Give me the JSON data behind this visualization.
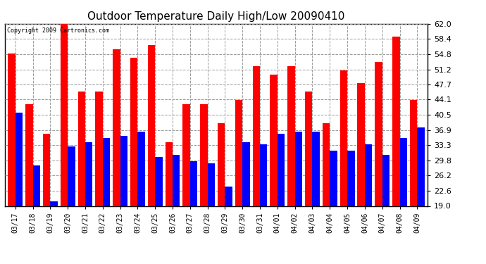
{
  "title": "Outdoor Temperature Daily High/Low 20090410",
  "copyright": "Copyright 2009 Cartronics.com",
  "dates": [
    "03/17",
    "03/18",
    "03/19",
    "03/20",
    "03/21",
    "03/22",
    "03/23",
    "03/24",
    "03/25",
    "03/26",
    "03/27",
    "03/28",
    "03/29",
    "03/30",
    "03/31",
    "04/01",
    "04/02",
    "04/03",
    "04/04",
    "04/05",
    "04/06",
    "04/07",
    "04/08",
    "04/09"
  ],
  "highs": [
    55.0,
    43.0,
    36.0,
    62.0,
    46.0,
    46.0,
    56.0,
    54.0,
    57.0,
    34.0,
    43.0,
    43.0,
    38.5,
    44.0,
    52.0,
    50.0,
    52.0,
    46.0,
    38.5,
    51.0,
    48.0,
    53.0,
    59.0,
    44.0
  ],
  "lows": [
    41.0,
    28.5,
    20.0,
    33.0,
    34.0,
    35.0,
    35.5,
    36.5,
    30.5,
    31.0,
    29.5,
    29.0,
    23.5,
    34.0,
    33.5,
    36.0,
    36.5,
    36.5,
    32.0,
    32.0,
    33.5,
    31.0,
    35.0,
    37.5
  ],
  "high_color": "#ff0000",
  "low_color": "#0000ff",
  "ylim": [
    19.0,
    62.0
  ],
  "yticks": [
    19.0,
    22.6,
    26.2,
    29.8,
    33.3,
    36.9,
    40.5,
    44.1,
    47.7,
    51.2,
    54.8,
    58.4,
    62.0
  ],
  "bg_color": "#ffffff",
  "grid_color": "#999999",
  "bar_width": 0.42
}
